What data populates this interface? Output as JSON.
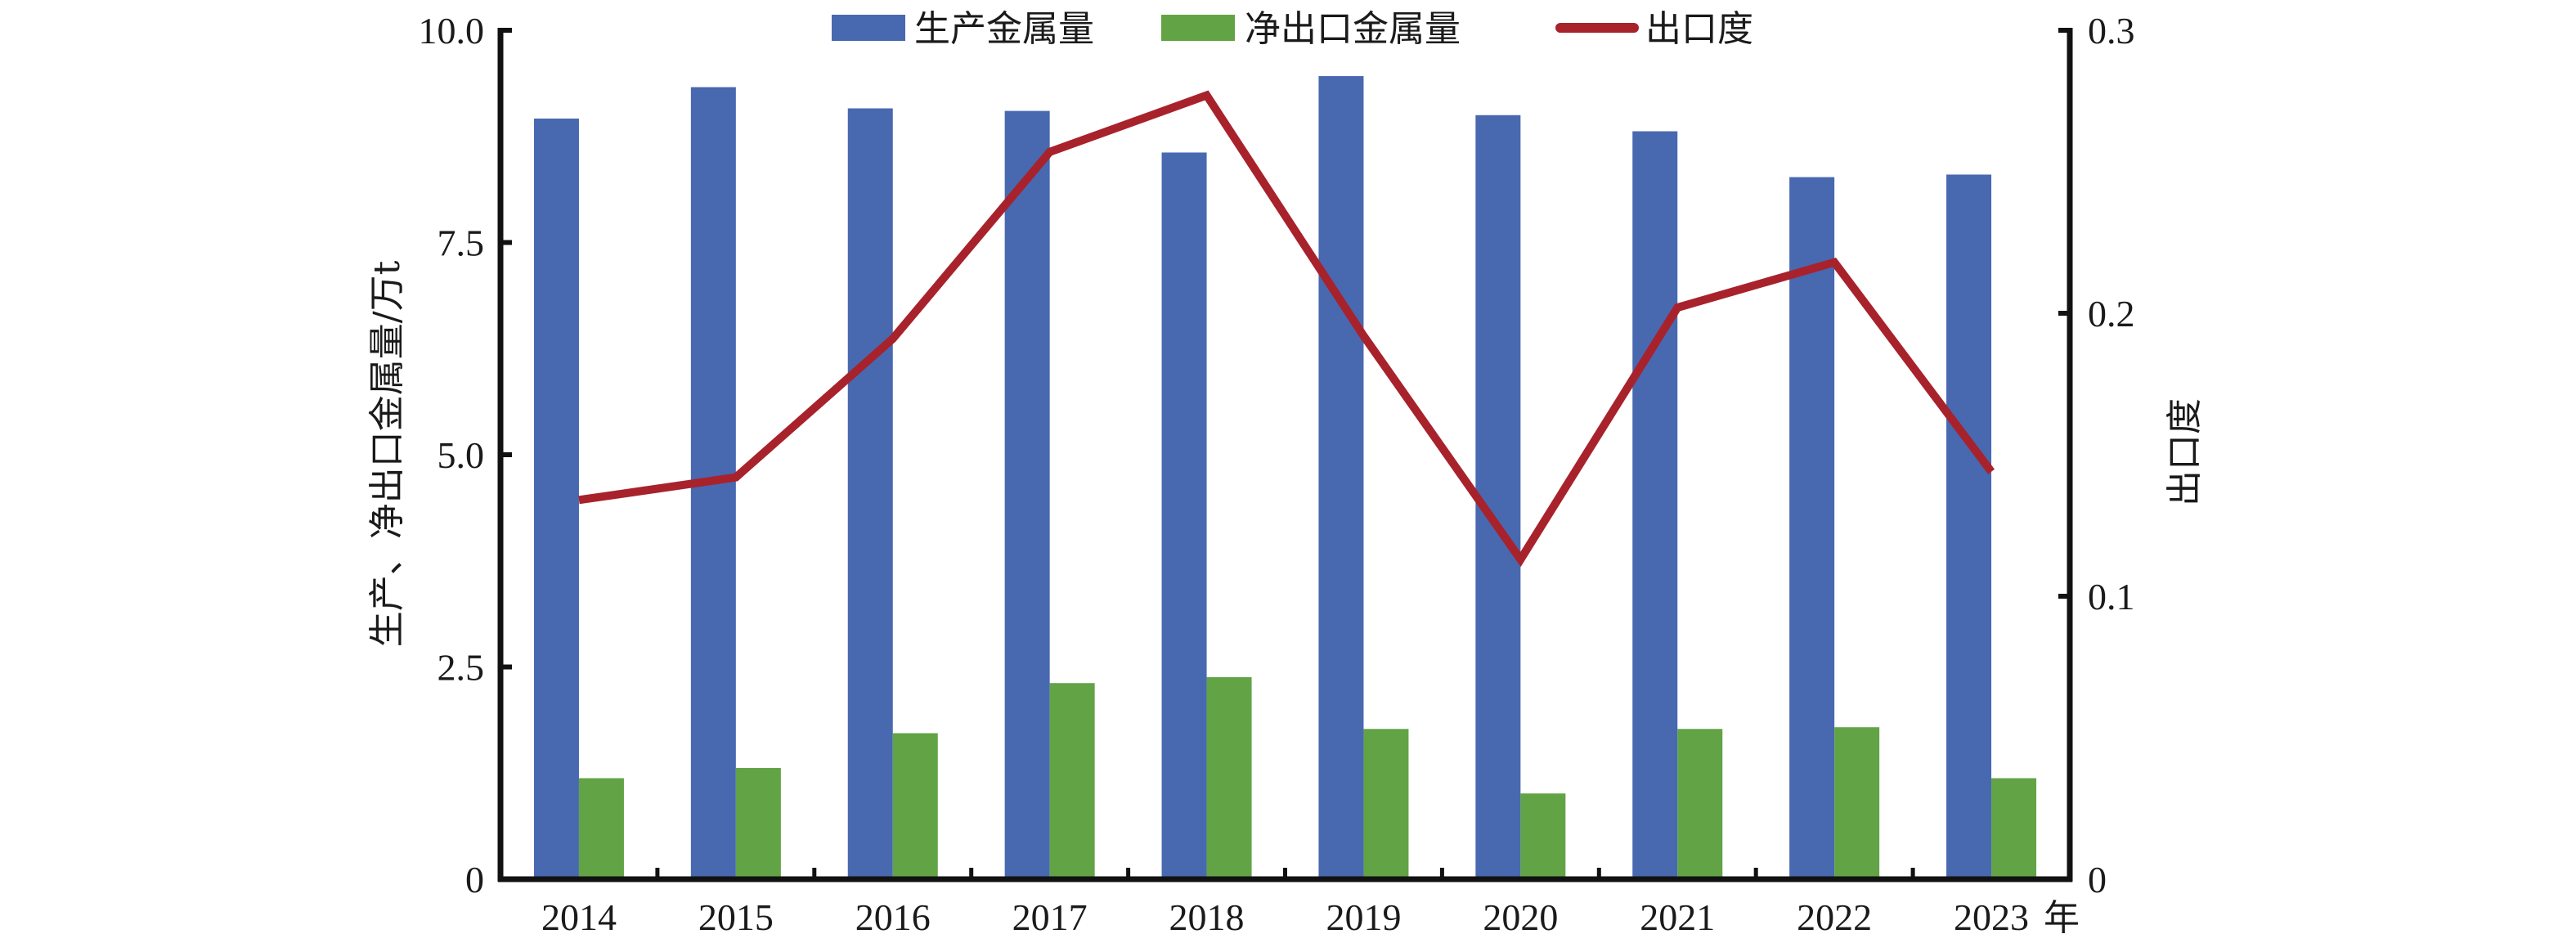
{
  "chart_data": {
    "type": "bar",
    "title": "",
    "categories": [
      "2014",
      "2015",
      "2016",
      "2017",
      "2018",
      "2019",
      "2020",
      "2021",
      "2022",
      "2023"
    ],
    "x_unit_suffix": "年",
    "series": [
      {
        "name": "生产金属量",
        "type": "bar",
        "axis": "left",
        "color": "#4868B0",
        "values": [
          8.96,
          9.33,
          9.08,
          9.05,
          8.56,
          9.46,
          9.0,
          8.81,
          8.27,
          8.3
        ]
      },
      {
        "name": "净出口金属量",
        "type": "bar",
        "axis": "left",
        "color": "#62A346",
        "values": [
          1.19,
          1.31,
          1.72,
          2.31,
          2.38,
          1.77,
          1.01,
          1.77,
          1.79,
          1.19
        ]
      },
      {
        "name": "出口度",
        "type": "line",
        "axis": "right",
        "color": "#A8222C",
        "values": [
          0.134,
          0.142,
          0.191,
          0.257,
          0.277,
          0.192,
          0.113,
          0.202,
          0.218,
          0.144
        ]
      }
    ],
    "xlabel": "年",
    "ylabel": "生产、净出口金属量/万t",
    "y2label": "出口度",
    "ylim": [
      0,
      10
    ],
    "y2lim": [
      0,
      0.3
    ],
    "yticks": [
      "0",
      "2.5",
      "5.0",
      "7.5",
      "10.0"
    ],
    "y2ticks": [
      "0",
      "0.1",
      "0.2",
      "0.3"
    ],
    "grid": false,
    "legend_position": "top"
  },
  "legend": {
    "items": [
      {
        "label": "生产金属量",
        "kind": "bar",
        "color": "#4868B0"
      },
      {
        "label": "净出口金属量",
        "kind": "bar",
        "color": "#62A346"
      },
      {
        "label": "出口度",
        "kind": "line",
        "color": "#A8222C"
      }
    ]
  },
  "axes": {
    "left_title": "生产、净出口金属量/万t",
    "right_title": "出口度",
    "x_suffix": "年"
  }
}
